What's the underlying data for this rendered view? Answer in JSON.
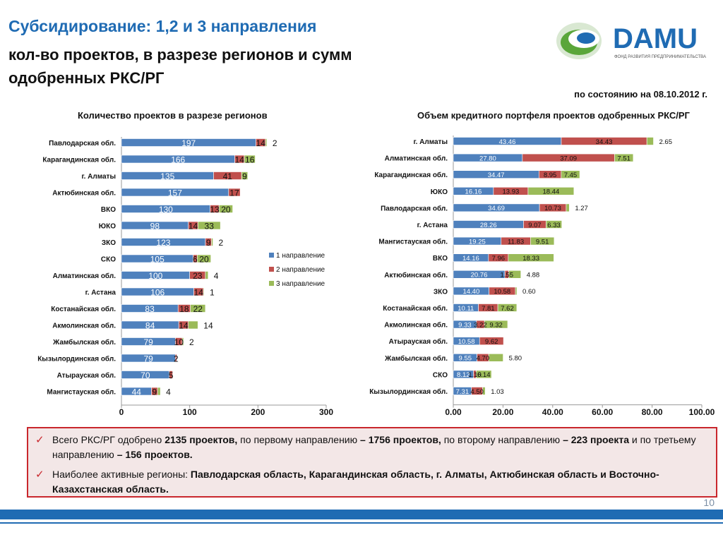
{
  "header": {
    "title_line1": "Субсидирование: 1,2 и 3 направления",
    "title_line2": "кол-во проектов, в разрезе регионов и сумм",
    "title_line3": "одобренных РКС/РГ"
  },
  "logo": {
    "name": "DAMU",
    "tagline": "ФОНД РАЗВИТИЯ ПРЕДПРИНИМАТЕЛЬСТВА"
  },
  "as_of": "по состоянию на 08.10.2012 г.",
  "colors": {
    "s1": "#4f81bd",
    "s2": "#c0504d",
    "s3": "#9bbb59",
    "accent": "#1f6bb3",
    "border": "#c9272d"
  },
  "chart_data": [
    {
      "type": "bar",
      "orientation": "horizontal",
      "stacked": true,
      "title": "Количество проектов в разрезе регионов",
      "categories": [
        "Павлодарская обл.",
        "Карагандинская обл.",
        "г. Алматы",
        "Актюбинская обл.",
        "ВКО",
        "ЮКО",
        "ЗКО",
        "СКО",
        "Алматинская обл.",
        "г. Астана",
        "Костанайская обл.",
        "Акмолинская обл.",
        "Жамбылская обл.",
        "Кызылординская обл.",
        "Атырауская обл.",
        "Мангистауская обл."
      ],
      "series": [
        {
          "name": "1 направление",
          "values": [
            197,
            166,
            135,
            157,
            130,
            98,
            123,
            105,
            100,
            106,
            83,
            84,
            79,
            79,
            70,
            44
          ]
        },
        {
          "name": "2 направление",
          "values": [
            14,
            14,
            41,
            17,
            13,
            14,
            9,
            6,
            23,
            14,
            18,
            14,
            10,
            2,
            5,
            9
          ]
        },
        {
          "name": "3 направление",
          "values": [
            2,
            16,
            9,
            null,
            20,
            33,
            2,
            20,
            4,
            1,
            22,
            14,
            2,
            null,
            null,
            4
          ]
        }
      ],
      "xlim": [
        0,
        300
      ],
      "xticks": [
        "0",
        "100",
        "200",
        "300"
      ],
      "legend": "right"
    },
    {
      "type": "bar",
      "orientation": "horizontal",
      "stacked": true,
      "title": "Объем кредитного портфеля проектов одобренных РКС/РГ",
      "categories": [
        "г. Алматы",
        "Алматинская обл.",
        "Карагандинская обл.",
        "ЮКО",
        "Павлодарская обл.",
        "г. Астана",
        "Мангистауская обл.",
        "ВКО",
        "Актюбинская обл.",
        "ЗКО",
        "Костанайская обл.",
        "Акмолинская обл.",
        "Атырауская обл.",
        "Жамбылская обл.",
        "СКО",
        "Кызылординская обл."
      ],
      "series": [
        {
          "name": "1 направление",
          "values": [
            43.46,
            27.8,
            34.47,
            16.16,
            34.69,
            28.26,
            19.25,
            14.16,
            20.76,
            14.4,
            10.11,
            9.33,
            10.58,
            9.55,
            8.12,
            7.31
          ]
        },
        {
          "name": "2 направление",
          "values": [
            34.43,
            37.09,
            8.95,
            13.93,
            10.73,
            9.07,
            11.83,
            7.96,
            1.55,
            10.58,
            7.81,
            3.22,
            9.62,
            4.7,
            1.1,
            4.5
          ]
        },
        {
          "name": "3 направление",
          "values": [
            2.65,
            7.51,
            7.45,
            18.44,
            1.27,
            6.33,
            9.51,
            18.33,
            4.88,
            0.6,
            7.62,
            9.32,
            null,
            5.8,
            6.14,
            1.03
          ]
        }
      ],
      "xlim": [
        0,
        100
      ],
      "xticks": [
        "0.00",
        "20.00",
        "40.00",
        "60.00",
        "80.00",
        "100.00"
      ]
    }
  ],
  "chart_labels": {
    "left": {
      "s1": [
        "197",
        "166",
        "135",
        "157",
        "130",
        "98",
        "123",
        "105",
        "100",
        "106",
        "83",
        "84",
        "79",
        "79",
        "70",
        "44"
      ],
      "s2": [
        "14",
        "14",
        "41",
        "17",
        "13",
        "14",
        "9",
        "6",
        "23",
        "14",
        "18",
        "14",
        "10",
        "2",
        "5",
        "9"
      ],
      "s3": [
        "2",
        "16",
        "9",
        "",
        "20",
        "33",
        "2",
        "20",
        "4",
        "1",
        "22",
        "14",
        "2",
        "",
        "",
        "4"
      ]
    },
    "right": {
      "s1": [
        "43.46",
        "27.80",
        "34.47",
        "16.16",
        "34.69",
        "28.26",
        "19.25",
        "14.16",
        "20.76",
        "14.40",
        "10.11",
        "9.33",
        "10.58",
        "9.55",
        "8.12",
        "7.31"
      ],
      "s2": [
        "34.43",
        "37.09",
        "8.95",
        "13.93",
        "10.73",
        "9.07",
        "11.83",
        "7.96",
        "1.55",
        "10.58",
        "7.81",
        "3.22",
        "9.62",
        "4.70",
        "1.10",
        "4.50"
      ],
      "s3": [
        "2.65",
        "7.51",
        "7.45",
        "18.44",
        "1.27",
        "6.33",
        "9.51",
        "18.33",
        "4.88",
        "0.60",
        "7.62",
        "9.32",
        "",
        "5.80",
        "6.14",
        "1.03"
      ]
    }
  },
  "summary": {
    "b1_p1": "Всего РКС/РГ одобрено ",
    "b1_b1": "2135 проектов,",
    "b1_p2": " по первому направлению ",
    "b1_b2": "– 1756 проектов,",
    "b1_p3": " по второму направлению ",
    "b1_b3": "– 223 проекта",
    "b1_p4": " и по третьему направлению ",
    "b1_b4": "– 156 проектов.",
    "b2_p1": "Наиболее активные регионы: ",
    "b2_b1": "Павлодарская область, Карагандинская область, г. Алматы, Актюбинская область и Восточно-Казахстанская область."
  },
  "page_number": "10"
}
